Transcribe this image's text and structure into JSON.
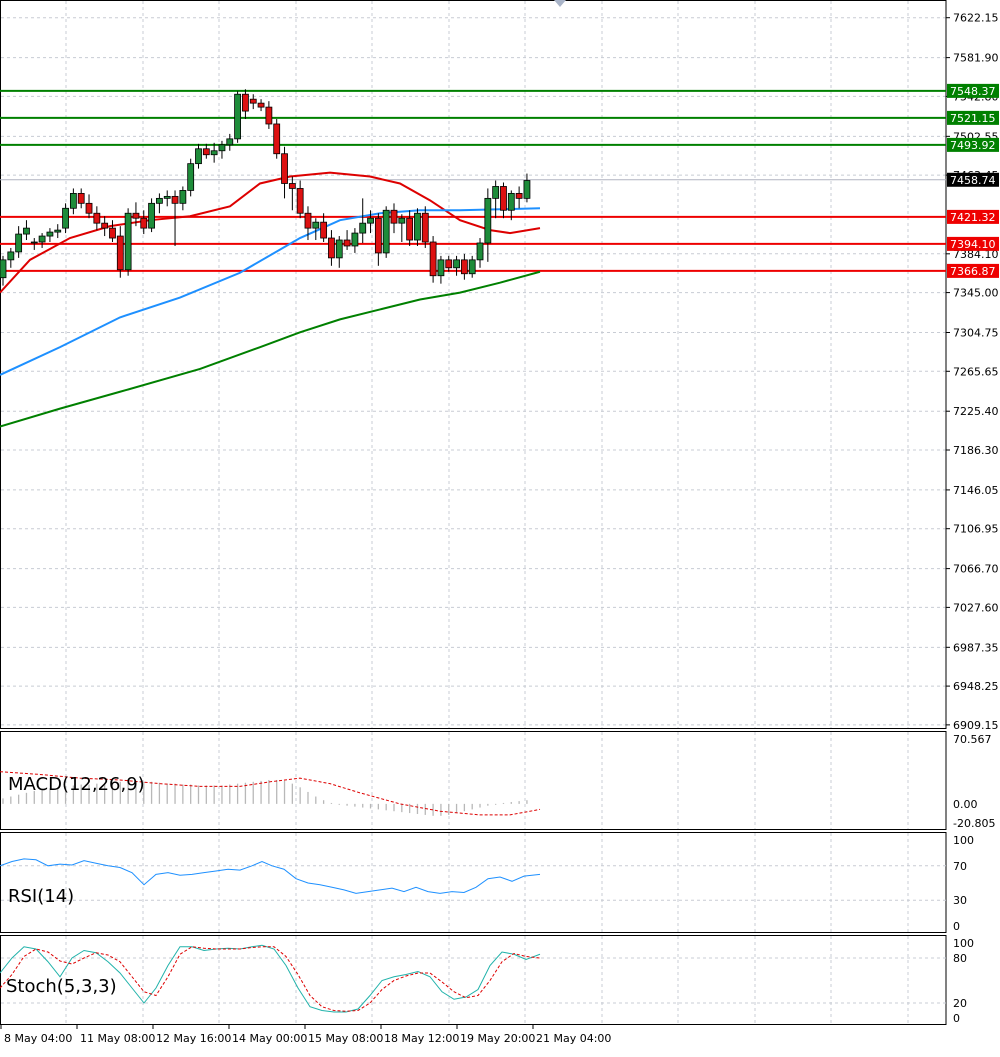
{
  "chart_data": {
    "type": "candlestick",
    "price_axis": {
      "ticks": [
        "7622.15",
        "7581.90",
        "7542.80",
        "7502.55",
        "7463.45",
        "7384.10",
        "7345.00",
        "7304.75",
        "7265.65",
        "7225.40",
        "7186.30",
        "7146.05",
        "7106.95",
        "7066.70",
        "7027.60",
        "6987.35",
        "6948.25",
        "6909.15"
      ],
      "range": [
        6906.0,
        7640.0
      ]
    },
    "time_axis": {
      "labels": [
        "8 May 04:00",
        "11 May 08:00",
        "12 May 16:00",
        "14 May 00:00",
        "15 May 08:00",
        "18 May 12:00",
        "19 May 20:00",
        "21 May 04:00"
      ]
    },
    "last_price": "7458.74",
    "levels": [
      {
        "value": 7548.37,
        "label": "7548.37",
        "color": "#008000"
      },
      {
        "value": 7521.15,
        "label": "7521.15",
        "color": "#008000"
      },
      {
        "value": 7493.92,
        "label": "7493.92",
        "color": "#008000"
      },
      {
        "value": 7421.32,
        "label": "7421.32",
        "color": "#ee0000"
      },
      {
        "value": 7394.1,
        "label": "7394.10",
        "color": "#ee0000"
      },
      {
        "value": 7366.87,
        "label": "7366.87",
        "color": "#ee0000"
      }
    ],
    "candles": [
      [
        7360,
        7382,
        7352,
        7378
      ],
      [
        7378,
        7390,
        7370,
        7386
      ],
      [
        7386,
        7412,
        7380,
        7404
      ],
      [
        7404,
        7418,
        7398,
        7410
      ],
      [
        7395,
        7400,
        7388,
        7396
      ],
      [
        7396,
        7405,
        7390,
        7402
      ],
      [
        7402,
        7410,
        7396,
        7406
      ],
      [
        7406,
        7414,
        7400,
        7408
      ],
      [
        7410,
        7435,
        7405,
        7430
      ],
      [
        7430,
        7450,
        7424,
        7445
      ],
      [
        7445,
        7450,
        7430,
        7435
      ],
      [
        7435,
        7444,
        7420,
        7425
      ],
      [
        7425,
        7432,
        7408,
        7415
      ],
      [
        7415,
        7422,
        7402,
        7410
      ],
      [
        7410,
        7418,
        7396,
        7400
      ],
      [
        7402,
        7412,
        7360,
        7368
      ],
      [
        7368,
        7430,
        7362,
        7425
      ],
      [
        7425,
        7436,
        7412,
        7420
      ],
      [
        7420,
        7428,
        7404,
        7410
      ],
      [
        7410,
        7440,
        7406,
        7435
      ],
      [
        7435,
        7445,
        7425,
        7440
      ],
      [
        7440,
        7448,
        7432,
        7442
      ],
      [
        7442,
        7448,
        7392,
        7435
      ],
      [
        7435,
        7452,
        7428,
        7448
      ],
      [
        7448,
        7480,
        7442,
        7475
      ],
      [
        7475,
        7495,
        7470,
        7490
      ],
      [
        7490,
        7495,
        7480,
        7484
      ],
      [
        7484,
        7496,
        7476,
        7488
      ],
      [
        7488,
        7498,
        7480,
        7494
      ],
      [
        7494,
        7505,
        7488,
        7500
      ],
      [
        7500,
        7548,
        7496,
        7545
      ],
      [
        7545,
        7550,
        7520,
        7528
      ],
      [
        7540,
        7545,
        7530,
        7536
      ],
      [
        7536,
        7540,
        7528,
        7532
      ],
      [
        7532,
        7538,
        7510,
        7515
      ],
      [
        7515,
        7520,
        7480,
        7485
      ],
      [
        7485,
        7492,
        7440,
        7455
      ],
      [
        7455,
        7462,
        7428,
        7450
      ],
      [
        7450,
        7458,
        7420,
        7425
      ],
      [
        7425,
        7432,
        7398,
        7410
      ],
      [
        7410,
        7420,
        7398,
        7416
      ],
      [
        7416,
        7425,
        7396,
        7400
      ],
      [
        7400,
        7408,
        7372,
        7380
      ],
      [
        7380,
        7402,
        7370,
        7398
      ],
      [
        7398,
        7408,
        7388,
        7392
      ],
      [
        7392,
        7410,
        7385,
        7405
      ],
      [
        7405,
        7440,
        7395,
        7415
      ],
      [
        7415,
        7428,
        7405,
        7420
      ],
      [
        7420,
        7425,
        7372,
        7385
      ],
      [
        7385,
        7432,
        7380,
        7428
      ],
      [
        7428,
        7435,
        7405,
        7415
      ],
      [
        7415,
        7424,
        7396,
        7420
      ],
      [
        7420,
        7428,
        7392,
        7398
      ],
      [
        7398,
        7430,
        7392,
        7425
      ],
      [
        7425,
        7432,
        7390,
        7396
      ],
      [
        7396,
        7402,
        7355,
        7362
      ],
      [
        7362,
        7382,
        7354,
        7378
      ],
      [
        7378,
        7382,
        7366,
        7370
      ],
      [
        7370,
        7382,
        7362,
        7378
      ],
      [
        7378,
        7384,
        7358,
        7364
      ],
      [
        7364,
        7382,
        7360,
        7378
      ],
      [
        7378,
        7400,
        7370,
        7395
      ],
      [
        7395,
        7450,
        7376,
        7440
      ],
      [
        7440,
        7458,
        7420,
        7452
      ],
      [
        7452,
        7456,
        7420,
        7428
      ],
      [
        7428,
        7448,
        7418,
        7445
      ],
      [
        7445,
        7452,
        7430,
        7440
      ],
      [
        7440,
        7465,
        7436,
        7458
      ]
    ],
    "ma_series": [
      {
        "color": "#dd0000",
        "points": [
          [
            0,
            7345
          ],
          [
            30,
            7378
          ],
          [
            70,
            7400
          ],
          [
            110,
            7412
          ],
          [
            150,
            7418
          ],
          [
            190,
            7422
          ],
          [
            230,
            7432
          ],
          [
            260,
            7455
          ],
          [
            290,
            7462
          ],
          [
            330,
            7466
          ],
          [
            370,
            7462
          ],
          [
            400,
            7455
          ],
          [
            430,
            7438
          ],
          [
            460,
            7418
          ],
          [
            490,
            7408
          ],
          [
            510,
            7405
          ],
          [
            540,
            7410
          ]
        ]
      },
      {
        "color": "#1e90ff",
        "points": [
          [
            0,
            7262
          ],
          [
            60,
            7290
          ],
          [
            120,
            7320
          ],
          [
            180,
            7340
          ],
          [
            240,
            7365
          ],
          [
            300,
            7400
          ],
          [
            340,
            7418
          ],
          [
            380,
            7425
          ],
          [
            420,
            7428
          ],
          [
            460,
            7428
          ],
          [
            500,
            7429
          ],
          [
            540,
            7430
          ]
        ]
      },
      {
        "color": "#008000",
        "points": [
          [
            0,
            7210
          ],
          [
            60,
            7228
          ],
          [
            120,
            7245
          ],
          [
            200,
            7268
          ],
          [
            260,
            7290
          ],
          [
            300,
            7305
          ],
          [
            340,
            7318
          ],
          [
            380,
            7328
          ],
          [
            420,
            7338
          ],
          [
            460,
            7345
          ],
          [
            500,
            7355
          ],
          [
            540,
            7366
          ]
        ]
      }
    ],
    "macd": {
      "label": "MACD(12,26,9)",
      "ticks": [
        "70.567",
        "0.00",
        "-20.805"
      ],
      "range": [
        -20.805,
        70.567
      ],
      "hist": [
        6,
        8,
        10,
        12,
        14,
        16,
        17,
        18,
        19,
        20,
        21,
        21,
        22,
        22,
        23,
        24,
        24,
        24,
        24,
        24,
        23,
        22,
        22,
        21,
        21,
        20,
        20,
        20,
        20,
        21,
        22,
        23,
        24,
        25,
        26,
        26,
        25,
        22,
        18,
        13,
        8,
        4,
        1,
        -1,
        -2,
        -3,
        -4,
        -5,
        -6,
        -7,
        -8,
        -9,
        -10,
        -11,
        -12,
        -13,
        -13,
        -12,
        -10,
        -8,
        -6,
        -4,
        -2,
        -1,
        1,
        2,
        3,
        4
      ],
      "signal": [
        [
          0,
          35
        ],
        [
          40,
          32
        ],
        [
          80,
          28
        ],
        [
          120,
          26
        ],
        [
          160,
          22
        ],
        [
          200,
          19
        ],
        [
          240,
          19
        ],
        [
          270,
          24
        ],
        [
          300,
          28
        ],
        [
          330,
          22
        ],
        [
          360,
          12
        ],
        [
          400,
          0
        ],
        [
          440,
          -8
        ],
        [
          480,
          -12
        ],
        [
          510,
          -12
        ],
        [
          540,
          -6
        ]
      ]
    },
    "rsi": {
      "label": "RSI(14)",
      "ticks": [
        "100",
        "70",
        "30",
        "0"
      ],
      "points": [
        [
          0,
          70
        ],
        [
          12,
          75
        ],
        [
          24,
          78
        ],
        [
          36,
          77
        ],
        [
          48,
          70
        ],
        [
          60,
          72
        ],
        [
          72,
          71
        ],
        [
          84,
          76
        ],
        [
          96,
          73
        ],
        [
          108,
          70
        ],
        [
          120,
          68
        ],
        [
          132,
          62
        ],
        [
          144,
          48
        ],
        [
          156,
          60
        ],
        [
          168,
          62
        ],
        [
          180,
          59
        ],
        [
          192,
          60
        ],
        [
          204,
          62
        ],
        [
          216,
          64
        ],
        [
          228,
          66
        ],
        [
          240,
          65
        ],
        [
          252,
          70
        ],
        [
          262,
          75
        ],
        [
          272,
          70
        ],
        [
          284,
          66
        ],
        [
          296,
          55
        ],
        [
          308,
          50
        ],
        [
          320,
          48
        ],
        [
          332,
          45
        ],
        [
          344,
          42
        ],
        [
          356,
          38
        ],
        [
          368,
          40
        ],
        [
          380,
          42
        ],
        [
          392,
          44
        ],
        [
          404,
          40
        ],
        [
          416,
          45
        ],
        [
          428,
          40
        ],
        [
          440,
          38
        ],
        [
          452,
          40
        ],
        [
          464,
          39
        ],
        [
          476,
          45
        ],
        [
          488,
          55
        ],
        [
          500,
          57
        ],
        [
          512,
          52
        ],
        [
          524,
          58
        ],
        [
          540,
          60
        ]
      ]
    },
    "stoch": {
      "label": "Stoch(5,3,3)",
      "ticks": [
        "100",
        "80",
        "20",
        "0"
      ],
      "k": [
        [
          0,
          60
        ],
        [
          12,
          80
        ],
        [
          24,
          95
        ],
        [
          36,
          92
        ],
        [
          48,
          75
        ],
        [
          60,
          55
        ],
        [
          72,
          80
        ],
        [
          84,
          90
        ],
        [
          96,
          87
        ],
        [
          108,
          75
        ],
        [
          120,
          60
        ],
        [
          132,
          40
        ],
        [
          144,
          20
        ],
        [
          156,
          40
        ],
        [
          168,
          70
        ],
        [
          180,
          95
        ],
        [
          192,
          95
        ],
        [
          204,
          90
        ],
        [
          216,
          92
        ],
        [
          228,
          93
        ],
        [
          240,
          92
        ],
        [
          252,
          95
        ],
        [
          262,
          97
        ],
        [
          274,
          92
        ],
        [
          286,
          70
        ],
        [
          298,
          40
        ],
        [
          310,
          15
        ],
        [
          322,
          10
        ],
        [
          334,
          8
        ],
        [
          346,
          8
        ],
        [
          358,
          12
        ],
        [
          370,
          30
        ],
        [
          382,
          50
        ],
        [
          394,
          55
        ],
        [
          406,
          58
        ],
        [
          418,
          62
        ],
        [
          430,
          55
        ],
        [
          442,
          35
        ],
        [
          454,
          25
        ],
        [
          466,
          28
        ],
        [
          478,
          38
        ],
        [
          490,
          70
        ],
        [
          502,
          88
        ],
        [
          514,
          85
        ],
        [
          526,
          78
        ],
        [
          540,
          85
        ]
      ],
      "d": [
        [
          0,
          40
        ],
        [
          12,
          58
        ],
        [
          24,
          82
        ],
        [
          36,
          92
        ],
        [
          48,
          88
        ],
        [
          60,
          76
        ],
        [
          72,
          72
        ],
        [
          84,
          80
        ],
        [
          96,
          87
        ],
        [
          108,
          84
        ],
        [
          120,
          75
        ],
        [
          132,
          55
        ],
        [
          144,
          35
        ],
        [
          156,
          30
        ],
        [
          168,
          55
        ],
        [
          180,
          85
        ],
        [
          192,
          95
        ],
        [
          204,
          93
        ],
        [
          216,
          92
        ],
        [
          228,
          92
        ],
        [
          240,
          92
        ],
        [
          252,
          94
        ],
        [
          262,
          95
        ],
        [
          274,
          95
        ],
        [
          286,
          82
        ],
        [
          298,
          58
        ],
        [
          310,
          30
        ],
        [
          322,
          15
        ],
        [
          334,
          10
        ],
        [
          346,
          9
        ],
        [
          358,
          10
        ],
        [
          370,
          20
        ],
        [
          382,
          38
        ],
        [
          394,
          50
        ],
        [
          406,
          56
        ],
        [
          418,
          60
        ],
        [
          430,
          60
        ],
        [
          442,
          48
        ],
        [
          454,
          35
        ],
        [
          466,
          27
        ],
        [
          478,
          30
        ],
        [
          490,
          50
        ],
        [
          502,
          75
        ],
        [
          514,
          86
        ],
        [
          526,
          82
        ],
        [
          540,
          80
        ]
      ]
    }
  }
}
